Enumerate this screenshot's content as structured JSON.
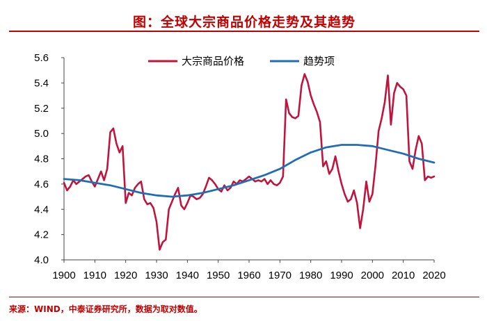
{
  "title": "图：全球大宗商品价格走势及其趋势",
  "source": "来源：WIND，中泰证券研究所，数据为取对数值。",
  "chart_data": {
    "type": "line",
    "xlim": [
      1900,
      2020
    ],
    "ylim": [
      4.0,
      5.6
    ],
    "x_ticks": [
      "1900",
      "1910",
      "1920",
      "1930",
      "1940",
      "1950",
      "1960",
      "1970",
      "1980",
      "1990",
      "2000",
      "2010",
      "2020"
    ],
    "y_ticks": [
      "4.0",
      "4.2",
      "4.4",
      "4.6",
      "4.8",
      "5.0",
      "5.2",
      "5.4",
      "5.6"
    ],
    "grid": false,
    "legend_position": "top-center",
    "series": [
      {
        "name": "大宗商品价格",
        "color": "#c0143c",
        "x": [
          1900,
          1901,
          1902,
          1903,
          1904,
          1905,
          1906,
          1907,
          1908,
          1909,
          1910,
          1911,
          1912,
          1913,
          1914,
          1915,
          1916,
          1917,
          1918,
          1919,
          1920,
          1921,
          1922,
          1923,
          1924,
          1925,
          1926,
          1927,
          1928,
          1929,
          1930,
          1931,
          1932,
          1933,
          1934,
          1935,
          1936,
          1937,
          1938,
          1939,
          1940,
          1941,
          1942,
          1943,
          1944,
          1945,
          1946,
          1947,
          1948,
          1949,
          1950,
          1951,
          1952,
          1953,
          1954,
          1955,
          1956,
          1957,
          1958,
          1959,
          1960,
          1961,
          1962,
          1963,
          1964,
          1965,
          1966,
          1967,
          1968,
          1969,
          1970,
          1971,
          1972,
          1973,
          1974,
          1975,
          1976,
          1977,
          1978,
          1979,
          1980,
          1981,
          1982,
          1983,
          1984,
          1985,
          1986,
          1987,
          1988,
          1989,
          1990,
          1991,
          1992,
          1993,
          1994,
          1995,
          1996,
          1997,
          1998,
          1999,
          2000,
          2001,
          2002,
          2003,
          2004,
          2005,
          2006,
          2007,
          2008,
          2009,
          2010,
          2011,
          2012,
          2013,
          2014,
          2015,
          2016,
          2017,
          2018,
          2019,
          2020
        ],
        "values": [
          4.61,
          4.55,
          4.58,
          4.63,
          4.6,
          4.62,
          4.64,
          4.66,
          4.67,
          4.62,
          4.58,
          4.64,
          4.7,
          4.63,
          4.72,
          5.01,
          5.04,
          4.92,
          4.85,
          4.9,
          4.45,
          4.53,
          4.51,
          4.57,
          4.6,
          4.62,
          4.48,
          4.44,
          4.45,
          4.41,
          4.3,
          4.08,
          4.14,
          4.16,
          4.4,
          4.46,
          4.52,
          4.57,
          4.43,
          4.4,
          4.45,
          4.51,
          4.5,
          4.48,
          4.49,
          4.52,
          4.58,
          4.65,
          4.63,
          4.6,
          4.56,
          4.54,
          4.59,
          4.55,
          4.57,
          4.62,
          4.6,
          4.63,
          4.62,
          4.64,
          4.66,
          4.64,
          4.62,
          4.63,
          4.62,
          4.64,
          4.6,
          4.63,
          4.6,
          4.59,
          4.61,
          4.66,
          5.27,
          5.16,
          5.13,
          5.12,
          5.14,
          5.38,
          5.47,
          5.41,
          5.3,
          5.23,
          5.17,
          5.09,
          4.74,
          4.78,
          4.68,
          4.72,
          4.82,
          4.7,
          4.6,
          4.52,
          4.46,
          4.48,
          4.55,
          4.45,
          4.25,
          4.4,
          4.62,
          4.46,
          4.52,
          4.75,
          5.02,
          5.12,
          5.25,
          5.46,
          5.07,
          5.32,
          5.4,
          5.37,
          5.35,
          5.3,
          4.78,
          4.72,
          4.87,
          4.98,
          4.92,
          4.63,
          4.66,
          4.65,
          4.66
        ]
      },
      {
        "name": "趋势项",
        "color": "#1f6eb5",
        "x": [
          1900,
          1905,
          1910,
          1915,
          1920,
          1925,
          1930,
          1935,
          1940,
          1945,
          1950,
          1955,
          1960,
          1965,
          1970,
          1975,
          1980,
          1985,
          1990,
          1995,
          2000,
          2005,
          2010,
          2015,
          2020
        ],
        "values": [
          4.64,
          4.63,
          4.61,
          4.59,
          4.56,
          4.53,
          4.51,
          4.5,
          4.51,
          4.53,
          4.56,
          4.59,
          4.63,
          4.67,
          4.72,
          4.79,
          4.85,
          4.89,
          4.91,
          4.91,
          4.9,
          4.87,
          4.84,
          4.8,
          4.77
        ]
      }
    ]
  }
}
